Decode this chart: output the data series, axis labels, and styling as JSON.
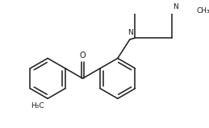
{
  "bg_color": "#ffffff",
  "line_color": "#1a1a1a",
  "line_width": 1.1,
  "font_size": 6.5,
  "figsize": [
    2.59,
    1.59
  ],
  "dpi": 100,
  "xlim": [
    -0.15,
    2.59
  ],
  "ylim": [
    -0.05,
    1.59
  ]
}
